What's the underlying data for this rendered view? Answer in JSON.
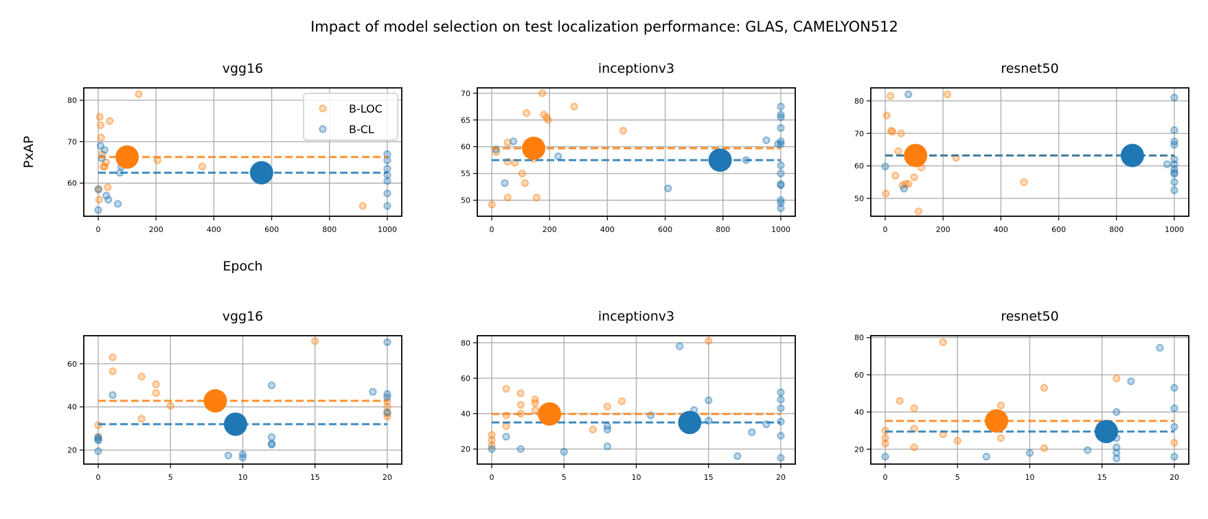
{
  "chart_data": {
    "suptitle": "Impact of model selection on test localization performance: GLAS, CAMELYON512",
    "xlabel": "Epoch",
    "ylabel": "PxAP",
    "legend": {
      "location": "top-right",
      "entries": [
        {
          "name": "B-LOC",
          "color": "#ff7f0e"
        },
        {
          "name": "B-CL",
          "color": "#1f77b4"
        }
      ]
    },
    "colors": {
      "loc": "#ff7f0e",
      "cl": "#1f77b4"
    },
    "subplots": [
      {
        "type": "scatter",
        "title": "vgg16",
        "row": 0,
        "col": 0,
        "xlim": [
          -50,
          1050
        ],
        "ylim": [
          52,
          83
        ],
        "xticks": [
          0,
          200,
          400,
          600,
          800,
          1000
        ],
        "yticks": [
          60,
          70,
          80
        ],
        "loc_points": [
          [
            2,
            58.5
          ],
          [
            5,
            76
          ],
          [
            8,
            74
          ],
          [
            10,
            71
          ],
          [
            14,
            67
          ],
          [
            18,
            64
          ],
          [
            22,
            64
          ],
          [
            27,
            65
          ],
          [
            33,
            59
          ],
          [
            40,
            75
          ],
          [
            140,
            81.5
          ],
          [
            205,
            65.5
          ],
          [
            360,
            64
          ],
          [
            915,
            54.5
          ],
          [
            3,
            56
          ]
        ],
        "cl_points": [
          [
            0,
            53.5
          ],
          [
            0,
            58.5
          ],
          [
            8,
            69
          ],
          [
            12,
            66
          ],
          [
            22,
            68
          ],
          [
            28,
            57
          ],
          [
            35,
            56
          ],
          [
            75,
            62.5
          ],
          [
            68,
            55
          ],
          [
            80,
            64
          ],
          [
            1000,
            67
          ],
          [
            1000,
            65.5
          ],
          [
            1000,
            63.5
          ],
          [
            1000,
            62
          ],
          [
            1000,
            60.5
          ],
          [
            1000,
            57.5
          ],
          [
            1000,
            54.5
          ]
        ],
        "loc_selected": {
          "x": 100,
          "y": 66.3
        },
        "cl_selected": {
          "x": 565,
          "y": 62.5
        },
        "loc_hline": 66.3,
        "cl_hline": 62.5
      },
      {
        "type": "scatter",
        "title": "inceptionv3",
        "row": 0,
        "col": 1,
        "xlim": [
          -50,
          1050
        ],
        "ylim": [
          47,
          71
        ],
        "xticks": [
          0,
          200,
          400,
          600,
          800,
          1000
        ],
        "yticks": [
          50,
          55,
          60,
          65,
          70
        ],
        "loc_points": [
          [
            0,
            49.2
          ],
          [
            15,
            59
          ],
          [
            55,
            57.2
          ],
          [
            55,
            60.8
          ],
          [
            55,
            50.5
          ],
          [
            80,
            57
          ],
          [
            105,
            55
          ],
          [
            115,
            53.2
          ],
          [
            120,
            66.3
          ],
          [
            135,
            61
          ],
          [
            140,
            60.2
          ],
          [
            145,
            57.8
          ],
          [
            150,
            58.5
          ],
          [
            155,
            50.5
          ],
          [
            175,
            70
          ],
          [
            180,
            66
          ],
          [
            190,
            65.5
          ],
          [
            195,
            65
          ],
          [
            285,
            67.5
          ],
          [
            455,
            63
          ]
        ],
        "cl_points": [
          [
            15,
            59.5
          ],
          [
            45,
            53.2
          ],
          [
            75,
            61
          ],
          [
            230,
            58.2
          ],
          [
            610,
            52.2
          ],
          [
            880,
            57.5
          ],
          [
            950,
            61.2
          ],
          [
            990,
            60.5
          ],
          [
            1000,
            67.5
          ],
          [
            1000,
            66
          ],
          [
            1000,
            65.5
          ],
          [
            1000,
            63.5
          ],
          [
            1000,
            61
          ],
          [
            1000,
            60.5
          ],
          [
            1000,
            56.5
          ],
          [
            1000,
            55
          ],
          [
            1000,
            53
          ],
          [
            1000,
            52.8
          ],
          [
            1000,
            50
          ],
          [
            1000,
            49.5
          ],
          [
            1000,
            48.5
          ]
        ],
        "loc_selected": {
          "x": 145,
          "y": 59.7
        },
        "cl_selected": {
          "x": 790,
          "y": 57.5
        },
        "loc_hline": 59.7,
        "cl_hline": 57.5
      },
      {
        "type": "scatter",
        "title": "resnet50",
        "row": 0,
        "col": 2,
        "xlim": [
          -50,
          1050
        ],
        "ylim": [
          44.5,
          84
        ],
        "xticks": [
          0,
          200,
          400,
          600,
          800,
          1000
        ],
        "yticks": [
          50,
          60,
          70,
          80
        ],
        "loc_points": [
          [
            2,
            51.5
          ],
          [
            5,
            75.5
          ],
          [
            18,
            81.5
          ],
          [
            20,
            70.8
          ],
          [
            25,
            70.5
          ],
          [
            35,
            57
          ],
          [
            45,
            64.5
          ],
          [
            55,
            70
          ],
          [
            60,
            54
          ],
          [
            70,
            54.5
          ],
          [
            80,
            54.5
          ],
          [
            100,
            56.5
          ],
          [
            115,
            46
          ],
          [
            125,
            59.5
          ],
          [
            215,
            82
          ],
          [
            245,
            62.5
          ],
          [
            480,
            55
          ]
        ],
        "cl_points": [
          [
            0,
            59.8
          ],
          [
            65,
            53
          ],
          [
            80,
            82
          ],
          [
            975,
            60.5
          ],
          [
            1000,
            81
          ],
          [
            1000,
            71
          ],
          [
            1000,
            67.5
          ],
          [
            1000,
            66.5
          ],
          [
            1000,
            62
          ],
          [
            1000,
            60.5
          ],
          [
            1000,
            59
          ],
          [
            1000,
            58
          ],
          [
            1000,
            57.5
          ],
          [
            1000,
            55
          ],
          [
            1000,
            52.5
          ]
        ],
        "loc_selected": {
          "x": 105,
          "y": 63.2
        },
        "cl_selected": {
          "x": 855,
          "y": 63.2
        },
        "loc_hline": 63.2,
        "cl_hline": 63.2
      },
      {
        "type": "scatter",
        "title": "vgg16",
        "row": 1,
        "col": 0,
        "xlim": [
          -1,
          21
        ],
        "ylim": [
          13.5,
          73
        ],
        "xticks": [
          0,
          5,
          10,
          15,
          20
        ],
        "yticks": [
          20,
          40,
          60
        ],
        "loc_points": [
          [
            0,
            31.5
          ],
          [
            0,
            26
          ],
          [
            1,
            63
          ],
          [
            1,
            56.5
          ],
          [
            3,
            54
          ],
          [
            3,
            34.5
          ],
          [
            4,
            50.5
          ],
          [
            4,
            46.5
          ],
          [
            5,
            40.5
          ],
          [
            15,
            70.5
          ],
          [
            20,
            42.5
          ],
          [
            20,
            40
          ],
          [
            20,
            37
          ],
          [
            20,
            35.5
          ]
        ],
        "cl_points": [
          [
            0,
            26
          ],
          [
            0,
            25
          ],
          [
            0,
            24.5
          ],
          [
            0,
            19.5
          ],
          [
            1,
            45.5
          ],
          [
            9,
            17.5
          ],
          [
            10,
            18
          ],
          [
            10,
            16.5
          ],
          [
            12,
            50
          ],
          [
            12,
            26
          ],
          [
            12,
            23
          ],
          [
            12,
            22.5
          ],
          [
            19,
            47
          ],
          [
            20,
            70
          ],
          [
            20,
            46
          ],
          [
            20,
            44.5
          ],
          [
            20,
            37.5
          ]
        ],
        "loc_selected": {
          "x": 8.1,
          "y": 42.8
        },
        "cl_selected": {
          "x": 9.5,
          "y": 32
        },
        "loc_hline": 42.8,
        "cl_hline": 32
      },
      {
        "type": "scatter",
        "title": "inceptionv3",
        "row": 1,
        "col": 1,
        "xlim": [
          -1,
          21
        ],
        "ylim": [
          11.5,
          84
        ],
        "xticks": [
          0,
          5,
          10,
          15,
          20
        ],
        "yticks": [
          20,
          40,
          60,
          80
        ],
        "loc_points": [
          [
            0,
            28
          ],
          [
            0,
            25
          ],
          [
            0,
            22
          ],
          [
            1,
            54
          ],
          [
            1,
            39
          ],
          [
            1,
            33
          ],
          [
            2,
            51.5
          ],
          [
            2,
            45
          ],
          [
            2,
            40
          ],
          [
            3,
            48
          ],
          [
            3,
            46
          ],
          [
            3,
            42
          ],
          [
            7,
            31
          ],
          [
            8,
            44
          ],
          [
            9,
            47
          ],
          [
            15,
            81
          ]
        ],
        "cl_points": [
          [
            0,
            20
          ],
          [
            1,
            27
          ],
          [
            2,
            20
          ],
          [
            5,
            18.5
          ],
          [
            8,
            33
          ],
          [
            8,
            31
          ],
          [
            8,
            21.5
          ],
          [
            11,
            39
          ],
          [
            13,
            78
          ],
          [
            14,
            42
          ],
          [
            15,
            47.5
          ],
          [
            15,
            36
          ],
          [
            17,
            16
          ],
          [
            18,
            29.5
          ],
          [
            19,
            34
          ],
          [
            20,
            52
          ],
          [
            20,
            48
          ],
          [
            20,
            43
          ],
          [
            20,
            35.5
          ],
          [
            20,
            27.5
          ],
          [
            20,
            15
          ]
        ],
        "loc_selected": {
          "x": 4,
          "y": 39.8
        },
        "cl_selected": {
          "x": 13.7,
          "y": 35
        },
        "loc_hline": 39.8,
        "cl_hline": 35
      },
      {
        "type": "scatter",
        "title": "resnet50",
        "row": 1,
        "col": 2,
        "xlim": [
          -1,
          21
        ],
        "ylim": [
          12,
          81
        ],
        "xticks": [
          0,
          5,
          10,
          15,
          20
        ],
        "yticks": [
          20,
          40,
          60,
          80
        ],
        "loc_points": [
          [
            0,
            30
          ],
          [
            0,
            26
          ],
          [
            0,
            23
          ],
          [
            1,
            46
          ],
          [
            2,
            42
          ],
          [
            2,
            31
          ],
          [
            2,
            21
          ],
          [
            4,
            77.5
          ],
          [
            4,
            28
          ],
          [
            5,
            24.5
          ],
          [
            8,
            43.5
          ],
          [
            8,
            26
          ],
          [
            11,
            53
          ],
          [
            11,
            20.5
          ],
          [
            16,
            58
          ],
          [
            20,
            23.5
          ]
        ],
        "cl_points": [
          [
            0,
            16
          ],
          [
            7,
            16
          ],
          [
            10,
            18
          ],
          [
            14,
            19.5
          ],
          [
            16,
            40
          ],
          [
            16,
            26
          ],
          [
            16,
            21
          ],
          [
            16,
            18
          ],
          [
            16,
            15
          ],
          [
            17,
            56.5
          ],
          [
            19,
            74.5
          ],
          [
            20,
            53
          ],
          [
            20,
            42
          ],
          [
            20,
            32
          ],
          [
            20,
            16
          ]
        ],
        "loc_selected": {
          "x": 7.7,
          "y": 35.2
        },
        "cl_selected": {
          "x": 15.3,
          "y": 29.5
        },
        "loc_hline": 35.2,
        "cl_hline": 29.5
      }
    ]
  }
}
